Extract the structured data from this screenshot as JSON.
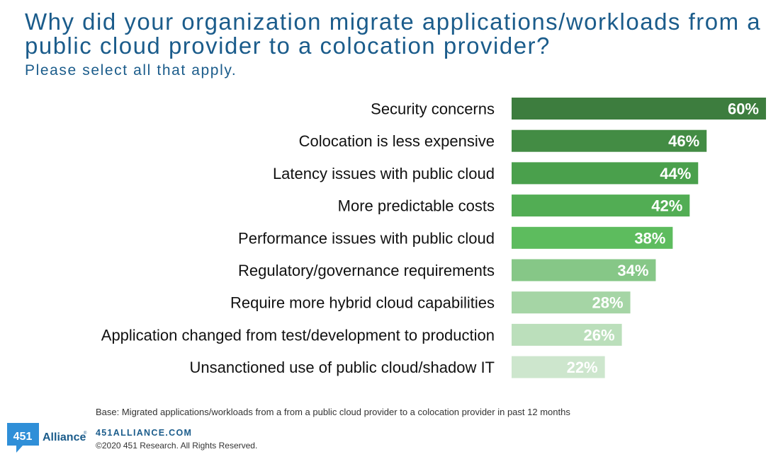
{
  "header": {
    "title": "Why did your organization migrate applications/workloads from a public cloud provider to a colocation provider?",
    "subtitle": "Please select all that apply."
  },
  "chart_data": {
    "type": "bar",
    "orientation": "horizontal",
    "categories": [
      "Security concerns",
      "Colocation is less expensive",
      "Latency issues with public cloud",
      "More predictable costs",
      "Performance issues with public cloud",
      "Regulatory/governance requirements",
      "Require more hybrid cloud capabilities",
      "Application changed from test/development to production",
      "Unsanctioned use of public cloud/shadow IT"
    ],
    "values": [
      60,
      46,
      44,
      42,
      38,
      34,
      28,
      26,
      22
    ],
    "value_labels": [
      "60%",
      "46%",
      "44%",
      "42%",
      "38%",
      "34%",
      "28%",
      "26%",
      "22%"
    ],
    "colors": [
      "#3d7d3e",
      "#438c44",
      "#4aa04c",
      "#52ad54",
      "#5dbc5e",
      "#86c787",
      "#a5d5a5",
      "#bbdfbb",
      "#cde6cd"
    ],
    "unit": "%",
    "xlim": [
      0,
      60
    ],
    "grid": false,
    "legend": "none"
  },
  "footer": {
    "base_note": "Base: Migrated applications/workloads from a from a public cloud provider to a colocation provider in past 12 months",
    "logo_text": "451",
    "logo_brand": "Alliance",
    "logo_registered": "®",
    "website": "451ALLIANCE.COM",
    "copyright": "©2020 451 Research. All Rights Reserved."
  }
}
